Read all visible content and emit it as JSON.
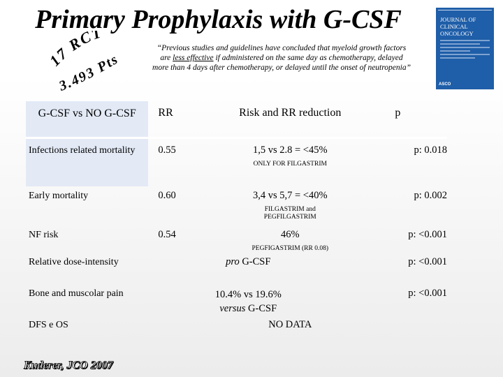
{
  "title": "Primary Prophylaxis with G-CSF",
  "curved_labels": {
    "line1": "17 RCT",
    "line2": "3.493 Pts"
  },
  "quote": {
    "part1": "“Previous studies and guidelines have concluded that myeloid growth factors are ",
    "emphasis": "less effective",
    "part2": " if administered on the same day as chemotherapy, delayed more than 4 days after chemotherapy, or delayed until the onset of neutropenia”"
  },
  "journal_cover": {
    "line1": "JOURNAL OF",
    "line2": "CLINICAL",
    "line3": "ONCOLOGY",
    "logo": "ASCO"
  },
  "table": {
    "headers": [
      "G-CSF vs NO G-CSF",
      "RR",
      "Risk and RR reduction",
      "p"
    ],
    "rows": [
      {
        "label": "Infections related mortality",
        "rr": "0.55",
        "risk": "1,5 vs 2.8 = <45%",
        "note": "ONLY FOR FILGASTRIM",
        "p": "p: 0.018"
      },
      {
        "label": "Early mortality",
        "rr": "0.60",
        "risk": "3,4 vs 5,7 = <40%",
        "note": "FILGASTRIM and PEGFILGASTRIM",
        "p": "p: 0.002"
      },
      {
        "label": "NF risk",
        "rr": "0.54",
        "risk": "46%",
        "note": "PEGFIGASTRIM (RR 0.08)",
        "p": "p: <0.001"
      },
      {
        "label": "Relative dose-intensity",
        "risk_em": "pro",
        "risk": " G-CSF",
        "p": "p: <0.001"
      },
      {
        "label": "Bone and muscolar pain",
        "risk_line1": "10.4% vs 19.6%",
        "risk_em": "versus",
        "risk_line2": " G-CSF",
        "p": "p: <0.001"
      },
      {
        "label": "DFS e OS",
        "risk": "NO DATA"
      }
    ]
  },
  "citation": "Kuderer, JCO 2007"
}
